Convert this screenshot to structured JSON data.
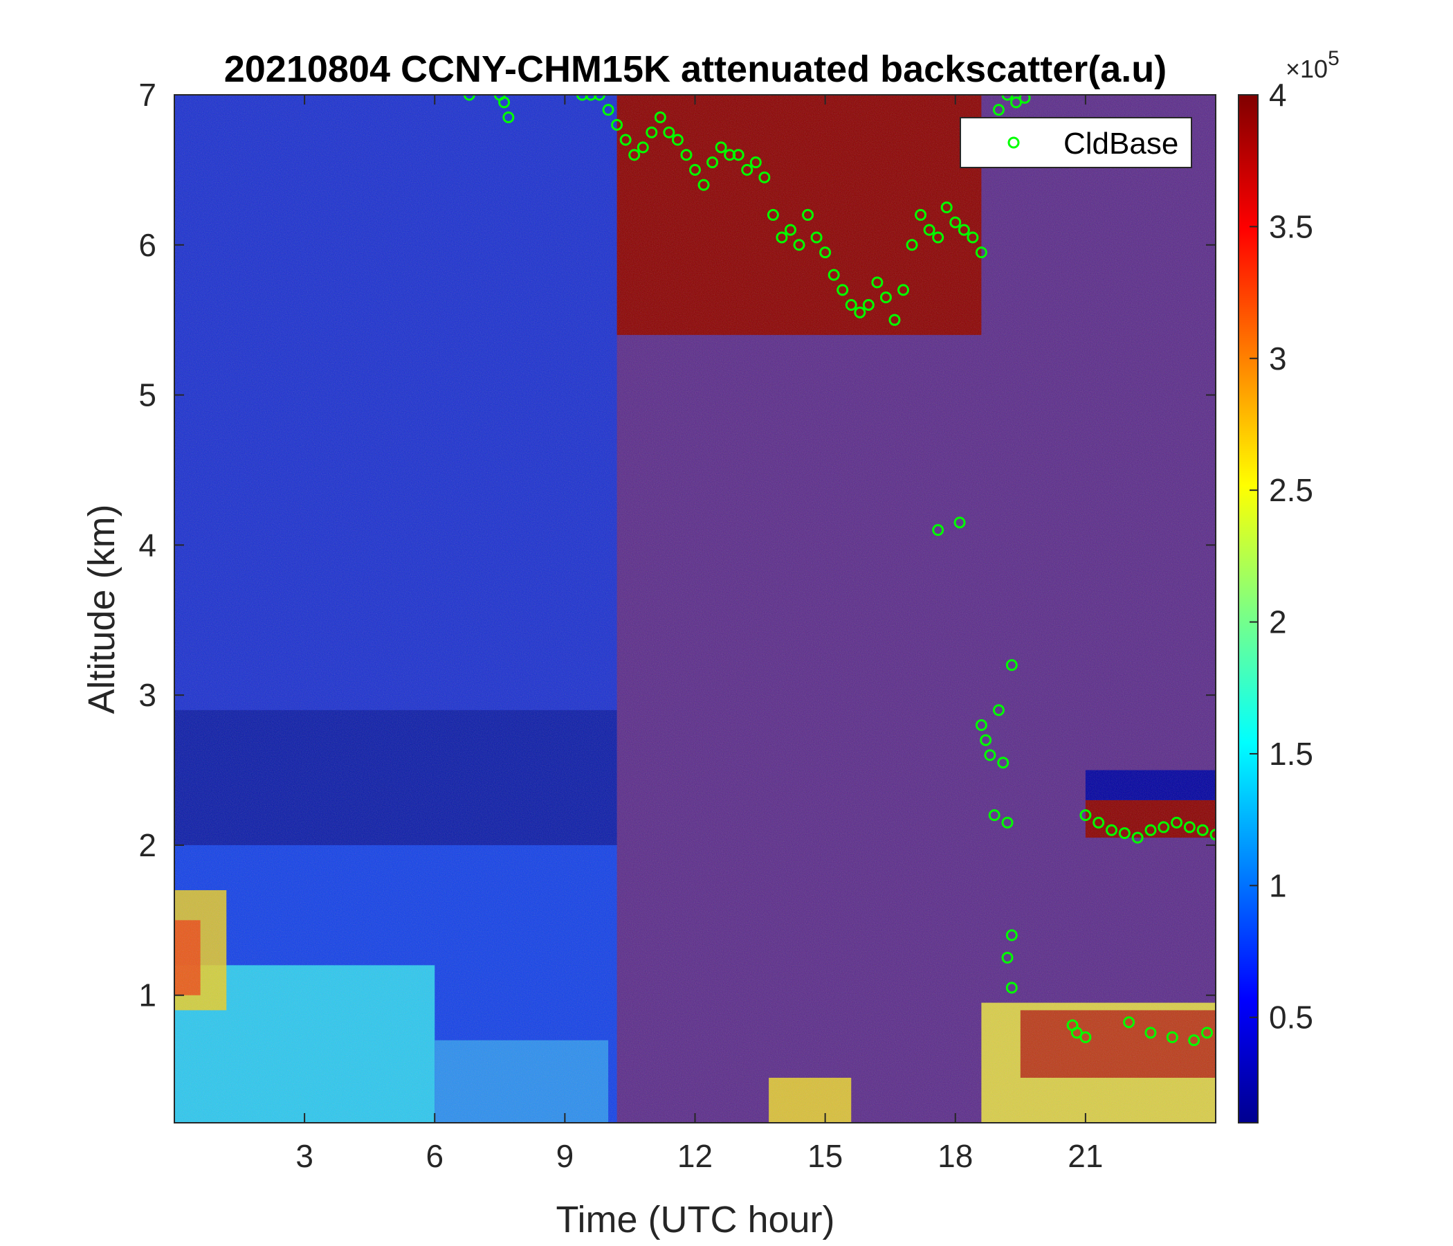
{
  "chart_data": {
    "type": "heatmap",
    "title": "20210804 CCNY-CHM15K attenuated backscatter(a.u)",
    "xlabel": "Time (UTC hour)",
    "ylabel": "Altitude (km)",
    "xlim": [
      0,
      24
    ],
    "ylim": [
      0.15,
      7
    ],
    "x_ticks": [
      3,
      6,
      9,
      12,
      15,
      18,
      21
    ],
    "x_tick_labels": [
      "3",
      "6",
      "9",
      "12",
      "15",
      "18",
      "21"
    ],
    "y_ticks": [
      1,
      2,
      3,
      4,
      5,
      6,
      7
    ],
    "y_tick_labels": [
      "1",
      "2",
      "3",
      "4",
      "5",
      "6",
      "7"
    ],
    "colorbar": {
      "colormap": "jet",
      "range": [
        0.1,
        4
      ],
      "ticks": [
        0.5,
        1,
        1.5,
        2,
        2.5,
        3,
        3.5,
        4
      ],
      "tick_labels": [
        "0.5",
        "1",
        "1.5",
        "2",
        "2.5",
        "3",
        "3.5",
        "4"
      ],
      "exponent_base": "×10",
      "exponent_power": "5"
    },
    "legend": {
      "position": "top-right",
      "entries": [
        "CldBase"
      ]
    },
    "series": [
      {
        "name": "CldBase",
        "marker": "circle",
        "color": "#00ff00",
        "points": [
          [
            6.8,
            7.0
          ],
          [
            7.5,
            7.0
          ],
          [
            7.6,
            6.95
          ],
          [
            7.7,
            6.85
          ],
          [
            9.4,
            7.0
          ],
          [
            9.6,
            7.0
          ],
          [
            9.8,
            7.0
          ],
          [
            10.0,
            6.9
          ],
          [
            10.2,
            6.8
          ],
          [
            10.4,
            6.7
          ],
          [
            10.6,
            6.6
          ],
          [
            10.8,
            6.65
          ],
          [
            11.0,
            6.75
          ],
          [
            11.2,
            6.85
          ],
          [
            11.4,
            6.75
          ],
          [
            11.6,
            6.7
          ],
          [
            11.8,
            6.6
          ],
          [
            12.0,
            6.5
          ],
          [
            12.2,
            6.4
          ],
          [
            12.4,
            6.55
          ],
          [
            12.6,
            6.65
          ],
          [
            12.8,
            6.6
          ],
          [
            13.0,
            6.6
          ],
          [
            13.2,
            6.5
          ],
          [
            13.4,
            6.55
          ],
          [
            13.6,
            6.45
          ],
          [
            13.8,
            6.2
          ],
          [
            14.0,
            6.05
          ],
          [
            14.2,
            6.1
          ],
          [
            14.4,
            6.0
          ],
          [
            14.6,
            6.2
          ],
          [
            14.8,
            6.05
          ],
          [
            15.0,
            5.95
          ],
          [
            15.2,
            5.8
          ],
          [
            15.4,
            5.7
          ],
          [
            15.6,
            5.6
          ],
          [
            15.8,
            5.55
          ],
          [
            16.0,
            5.6
          ],
          [
            16.2,
            5.75
          ],
          [
            16.4,
            5.65
          ],
          [
            16.6,
            5.5
          ],
          [
            16.8,
            5.7
          ],
          [
            17.0,
            6.0
          ],
          [
            17.2,
            6.2
          ],
          [
            17.4,
            6.1
          ],
          [
            17.6,
            6.05
          ],
          [
            17.8,
            6.25
          ],
          [
            18.0,
            6.15
          ],
          [
            18.2,
            6.1
          ],
          [
            18.4,
            6.05
          ],
          [
            18.6,
            5.95
          ],
          [
            17.6,
            4.1
          ],
          [
            18.1,
            4.15
          ],
          [
            19.0,
            6.9
          ],
          [
            19.2,
            7.0
          ],
          [
            19.4,
            6.95
          ],
          [
            19.6,
            6.98
          ],
          [
            18.6,
            2.8
          ],
          [
            18.7,
            2.7
          ],
          [
            18.8,
            2.6
          ],
          [
            18.9,
            2.2
          ],
          [
            19.0,
            2.9
          ],
          [
            19.1,
            2.55
          ],
          [
            19.2,
            2.15
          ],
          [
            19.3,
            3.2
          ],
          [
            19.3,
            1.4
          ],
          [
            19.2,
            1.25
          ],
          [
            19.3,
            1.05
          ],
          [
            20.7,
            0.8
          ],
          [
            20.8,
            0.75
          ],
          [
            21.0,
            0.72
          ],
          [
            22.0,
            0.82
          ],
          [
            22.5,
            0.75
          ],
          [
            23.0,
            0.72
          ],
          [
            23.5,
            0.7
          ],
          [
            23.8,
            0.75
          ],
          [
            21.0,
            2.2
          ],
          [
            21.3,
            2.15
          ],
          [
            21.6,
            2.1
          ],
          [
            21.9,
            2.08
          ],
          [
            22.2,
            2.05
          ],
          [
            22.5,
            2.1
          ],
          [
            22.8,
            2.12
          ],
          [
            23.1,
            2.15
          ],
          [
            23.4,
            2.12
          ],
          [
            23.7,
            2.1
          ],
          [
            24.0,
            2.07
          ]
        ]
      }
    ]
  }
}
